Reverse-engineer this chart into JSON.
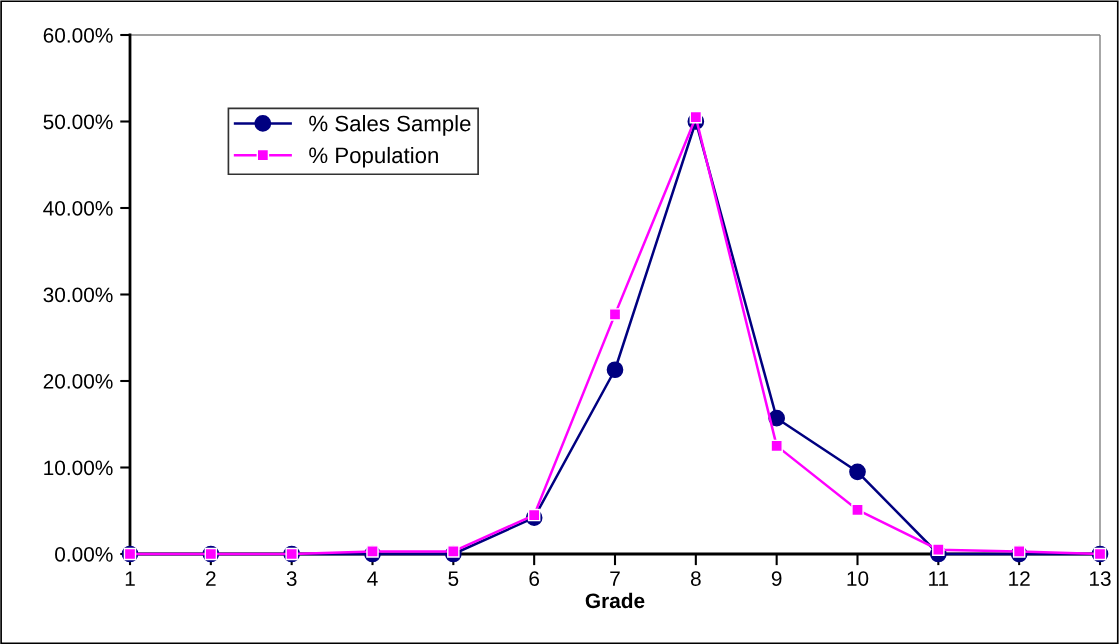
{
  "chart_data": {
    "type": "line",
    "xlabel": "Grade",
    "x": [
      1,
      2,
      3,
      4,
      5,
      6,
      7,
      8,
      9,
      10,
      11,
      12,
      13
    ],
    "series": [
      {
        "name": "% Sales Sample",
        "color": "#000080",
        "marker": "circle",
        "values": [
          0,
          0,
          0,
          0,
          0,
          4.2,
          21.3,
          50.0,
          15.7,
          9.5,
          0,
          0,
          0
        ]
      },
      {
        "name": "% Population",
        "color": "#ff00ff",
        "marker": "square",
        "values": [
          0,
          0,
          0,
          0.3,
          0.3,
          4.5,
          27.7,
          50.5,
          12.5,
          5.1,
          0.5,
          0.3,
          0
        ]
      }
    ],
    "xlim": [
      1,
      13
    ],
    "xticks": [
      1,
      2,
      3,
      4,
      5,
      6,
      7,
      8,
      9,
      10,
      11,
      12,
      13
    ],
    "ylim": [
      0,
      60
    ],
    "yticks": [
      {
        "value": 0,
        "label": "0.00%"
      },
      {
        "value": 10,
        "label": "10.00%"
      },
      {
        "value": 20,
        "label": "20.00%"
      },
      {
        "value": 30,
        "label": "30.00%"
      },
      {
        "value": 40,
        "label": "40.00%"
      },
      {
        "value": 50,
        "label": "50.00%"
      },
      {
        "value": 60,
        "label": "60.00%"
      }
    ],
    "grid": false,
    "legend": "top left",
    "line_style": "solid"
  }
}
